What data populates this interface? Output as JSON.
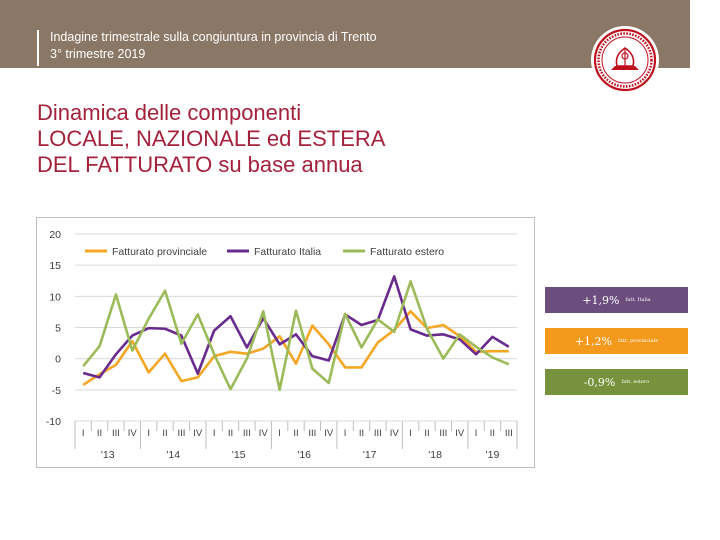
{
  "header": {
    "line1": "Indagine trimestrale sulla congiuntura in provincia di Trento",
    "line2": "3° trimestre 2019"
  },
  "title": {
    "line1": "Dinamica delle componenti",
    "line2": "LOCALE, NAZIONALE ed ESTERA",
    "line3": "DEL FATTURATO su base annua"
  },
  "logo": {
    "icon": "university-seal-icon",
    "color": "#c0121e"
  },
  "chart_data": {
    "type": "line",
    "title": "",
    "xlabel": "",
    "ylabel": "",
    "ylim": [
      -10,
      20
    ],
    "yticks": [
      20,
      15,
      10,
      5,
      0,
      -5,
      -10
    ],
    "grid": true,
    "legend_position": "top",
    "categories": [
      "I",
      "II",
      "III",
      "IV",
      "I",
      "II",
      "III",
      "IV",
      "I",
      "II",
      "III",
      "IV",
      "I",
      "II",
      "III",
      "IV",
      "I",
      "II",
      "III",
      "IV",
      "I",
      "II",
      "III",
      "IV",
      "I",
      "II",
      "III"
    ],
    "years": [
      {
        "label": "'13",
        "start": 0,
        "count": 4
      },
      {
        "label": "'14",
        "start": 4,
        "count": 4
      },
      {
        "label": "'15",
        "start": 8,
        "count": 4
      },
      {
        "label": "'16",
        "start": 12,
        "count": 4
      },
      {
        "label": "'17",
        "start": 16,
        "count": 4
      },
      {
        "label": "'18",
        "start": 20,
        "count": 4
      },
      {
        "label": "'19",
        "start": 24,
        "count": 3
      }
    ],
    "series": [
      {
        "name": "Fatturato provinciale",
        "color": "#f5a623",
        "values": [
          -4.2,
          -2.5,
          -1.0,
          2.8,
          -2.2,
          0.8,
          -3.6,
          -3.0,
          0.4,
          1.1,
          0.8,
          1.6,
          3.6,
          -0.8,
          5.3,
          2.3,
          -1.4,
          -1.4,
          2.6,
          4.6,
          7.6,
          4.9,
          5.4,
          3.6,
          1.1,
          1.2,
          1.2
        ]
      },
      {
        "name": "Fatturato Italia",
        "color": "#6a2b8e",
        "values": [
          -2.3,
          -3.0,
          0.7,
          3.7,
          4.9,
          4.8,
          3.7,
          -2.4,
          4.5,
          6.8,
          1.8,
          6.5,
          2.3,
          3.9,
          0.4,
          -0.3,
          7.1,
          5.4,
          6.2,
          13.2,
          4.7,
          3.7,
          3.9,
          3.1,
          0.7,
          3.5,
          1.9
        ]
      },
      {
        "name": "Fatturato estero",
        "color": "#9bbb59",
        "values": [
          -1.2,
          2.0,
          10.3,
          1.3,
          6.4,
          10.9,
          2.4,
          7.1,
          0.7,
          -4.9,
          0.0,
          7.6,
          -5.0,
          7.7,
          -1.6,
          -3.9,
          7.2,
          1.8,
          6.3,
          4.3,
          12.4,
          4.8,
          0.0,
          3.9,
          1.9,
          0.2,
          -0.9
        ]
      }
    ]
  },
  "badges": [
    {
      "value": "+1,9%",
      "label": "fatt. Italia",
      "color": "#6c4d7e"
    },
    {
      "value": "+1,2%",
      "label": "fatt. provinciale",
      "color": "#f39a1c"
    },
    {
      "value": "-0,9%",
      "label": "fatt. estero",
      "color": "#76923c"
    }
  ]
}
